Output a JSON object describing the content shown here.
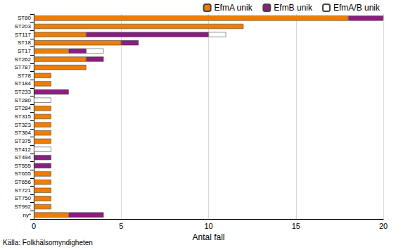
{
  "chart_data": {
    "type": "bar",
    "orientation": "horizontal",
    "stacked": true,
    "grid": true,
    "legend": "top",
    "xlabel": "Antal fall",
    "source": "Källa: Folkhälsomyndigheten",
    "categories": [
      "ST80",
      "ST203",
      "ST117",
      "ST18",
      "ST17",
      "ST262",
      "ST787",
      "ST78",
      "ST184",
      "ST233",
      "ST280",
      "ST284",
      "ST315",
      "ST323",
      "ST364",
      "ST375",
      "ST412",
      "ST494",
      "ST555",
      "ST655",
      "ST656",
      "ST721",
      "ST750",
      "ST992",
      "ny*"
    ],
    "xlim": [
      0,
      20
    ],
    "xticks": [
      0,
      5,
      10,
      15,
      20
    ],
    "series": [
      {
        "name": "EfmA unik",
        "color": "#f07d00",
        "values": [
          18,
          12,
          3,
          5,
          2,
          3,
          3,
          1,
          1,
          null,
          null,
          1,
          1,
          1,
          1,
          1,
          null,
          null,
          null,
          1,
          1,
          1,
          1,
          1,
          2
        ]
      },
      {
        "name": "EfmB unik",
        "color": "#8c1d7f",
        "values": [
          2,
          null,
          7,
          1,
          1,
          1,
          null,
          null,
          null,
          2,
          null,
          null,
          null,
          null,
          null,
          null,
          null,
          1,
          1,
          null,
          null,
          null,
          null,
          null,
          2
        ]
      },
      {
        "name": "EfmA/B unik",
        "color": "#ffffff",
        "values": [
          null,
          null,
          1,
          null,
          1,
          null,
          null,
          null,
          null,
          null,
          1,
          null,
          null,
          null,
          null,
          null,
          1,
          null,
          null,
          null,
          null,
          null,
          null,
          null,
          null
        ]
      }
    ]
  }
}
